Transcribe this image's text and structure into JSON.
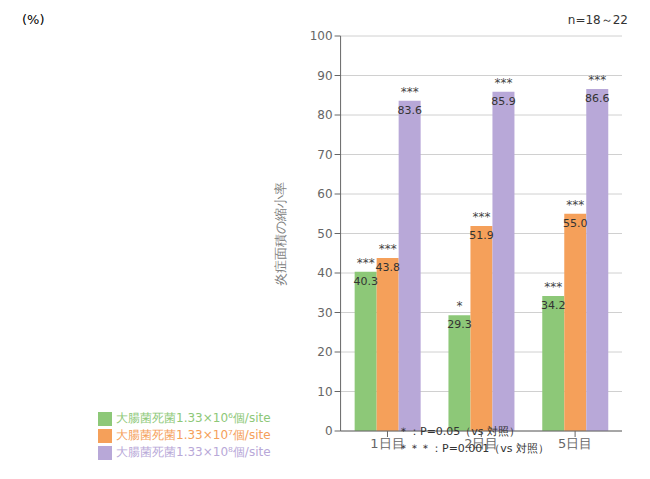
{
  "chart_data": {
    "type": "bar",
    "categories": [
      "1日目",
      "2日目",
      "5日目"
    ],
    "series": [
      {
        "name": "大腸菌死菌1.33×10⁶個/site",
        "color": "#8dc878",
        "values": [
          40.3,
          29.3,
          34.2
        ],
        "value_labels": [
          "40.3",
          "29.3",
          "34.2"
        ],
        "annotations": [
          "***",
          "*",
          "***"
        ]
      },
      {
        "name": "大腸菌死菌1.33×10⁷個/site",
        "color": "#f5a05a",
        "values": [
          43.8,
          51.9,
          55.0
        ],
        "value_labels": [
          "43.8",
          "51.9",
          "55.0"
        ],
        "annotations": [
          "***",
          "***",
          "***"
        ]
      },
      {
        "name": "大腸菌死菌1.33×10⁸個/site",
        "color": "#b8a8d8",
        "values": [
          83.6,
          85.9,
          86.6
        ],
        "value_labels": [
          "83.6",
          "85.9",
          "86.6"
        ],
        "annotations": [
          "***",
          "***",
          "***"
        ]
      }
    ],
    "y_label": "炎症面積の縮小率",
    "y_unit": "(%)",
    "annotations": [
      "n=18～22",
      "＊：P=0.05（vs 対照）",
      "＊＊＊：P=0.001（vs 対照）"
    ],
    "ylim": [
      0,
      100
    ],
    "yticks": [
      0,
      10,
      20,
      30,
      40,
      50,
      60,
      70,
      80,
      90,
      100
    ],
    "grid": true,
    "legend": "bottom",
    "data_labels": true
  }
}
